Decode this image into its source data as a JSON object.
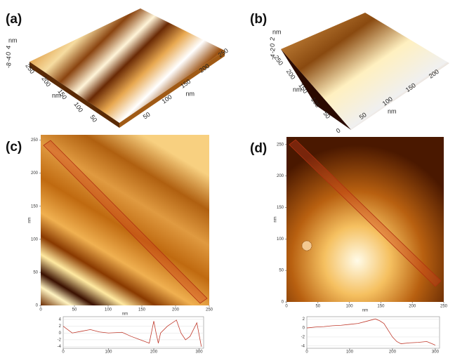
{
  "panels": [
    {
      "label": "(a)",
      "z_unit": "nm",
      "z_ticks": [
        "4",
        "0",
        "-4",
        "-8"
      ],
      "x_ticks": [
        "250",
        "200",
        "150",
        "100",
        "50"
      ],
      "x_unit": "nm",
      "y_ticks": [
        "50",
        "100",
        "150",
        "200",
        "250"
      ],
      "y_unit": "nm"
    },
    {
      "label": "(b)",
      "z_unit": "nm",
      "z_ticks": [
        "2",
        "0",
        "-2",
        "-4"
      ],
      "x_ticks": [
        "250",
        "200",
        "150",
        "100",
        "50"
      ],
      "x_unit": "nm",
      "y_ticks": [
        "0",
        "50",
        "100",
        "150",
        "200"
      ],
      "y_unit": "nm"
    },
    {
      "label": "(c)",
      "xlabel": "nm",
      "ylabel": "nm",
      "xlim": [
        0,
        250
      ],
      "ylim": [
        0,
        258
      ],
      "xticks": [
        0,
        50,
        100,
        150,
        200,
        250
      ],
      "yticks": [
        0,
        50,
        100,
        150,
        200,
        250
      ]
    },
    {
      "label": "(d)",
      "xlabel": "nm",
      "ylabel": "nm",
      "xlim": [
        0,
        250
      ],
      "ylim": [
        0,
        262
      ],
      "xticks": [
        0,
        50,
        100,
        150,
        200,
        250
      ],
      "yticks": [
        0,
        50,
        100,
        150,
        200,
        250
      ]
    }
  ],
  "profiles": [
    {
      "x": [
        0,
        10,
        20,
        40,
        60,
        80,
        100,
        130,
        150,
        170,
        190,
        200,
        205,
        210,
        215,
        230,
        250,
        260,
        270,
        280,
        295,
        305
      ],
      "values": [
        2,
        1,
        0,
        0.5,
        1,
        0.3,
        0,
        0.2,
        -1,
        -2,
        -3,
        3.5,
        0,
        -3,
        0,
        2,
        3.8,
        0,
        -2,
        -1,
        3,
        -4
      ],
      "xlim": [
        0,
        310
      ],
      "ylim": [
        -4.5,
        4.8
      ],
      "xticks": [
        0,
        100,
        200,
        300
      ],
      "yticks": [
        4,
        2,
        0,
        -2,
        -4
      ]
    },
    {
      "x": [
        0,
        20,
        40,
        60,
        80,
        100,
        120,
        140,
        160,
        170,
        180,
        190,
        200,
        210,
        220,
        240,
        260,
        280,
        300
      ],
      "values": [
        0,
        0.2,
        0.3,
        0.5,
        0.6,
        0.8,
        1,
        1.5,
        2,
        1.6,
        1,
        -0.5,
        -2,
        -3,
        -3.5,
        -3.3,
        -3.2,
        -3,
        -3.8
      ],
      "xlim": [
        0,
        310
      ],
      "ylim": [
        -4.5,
        2.5
      ],
      "xticks": [
        0,
        100,
        200,
        300
      ],
      "yticks": [
        2,
        0,
        -2,
        -4
      ]
    }
  ]
}
